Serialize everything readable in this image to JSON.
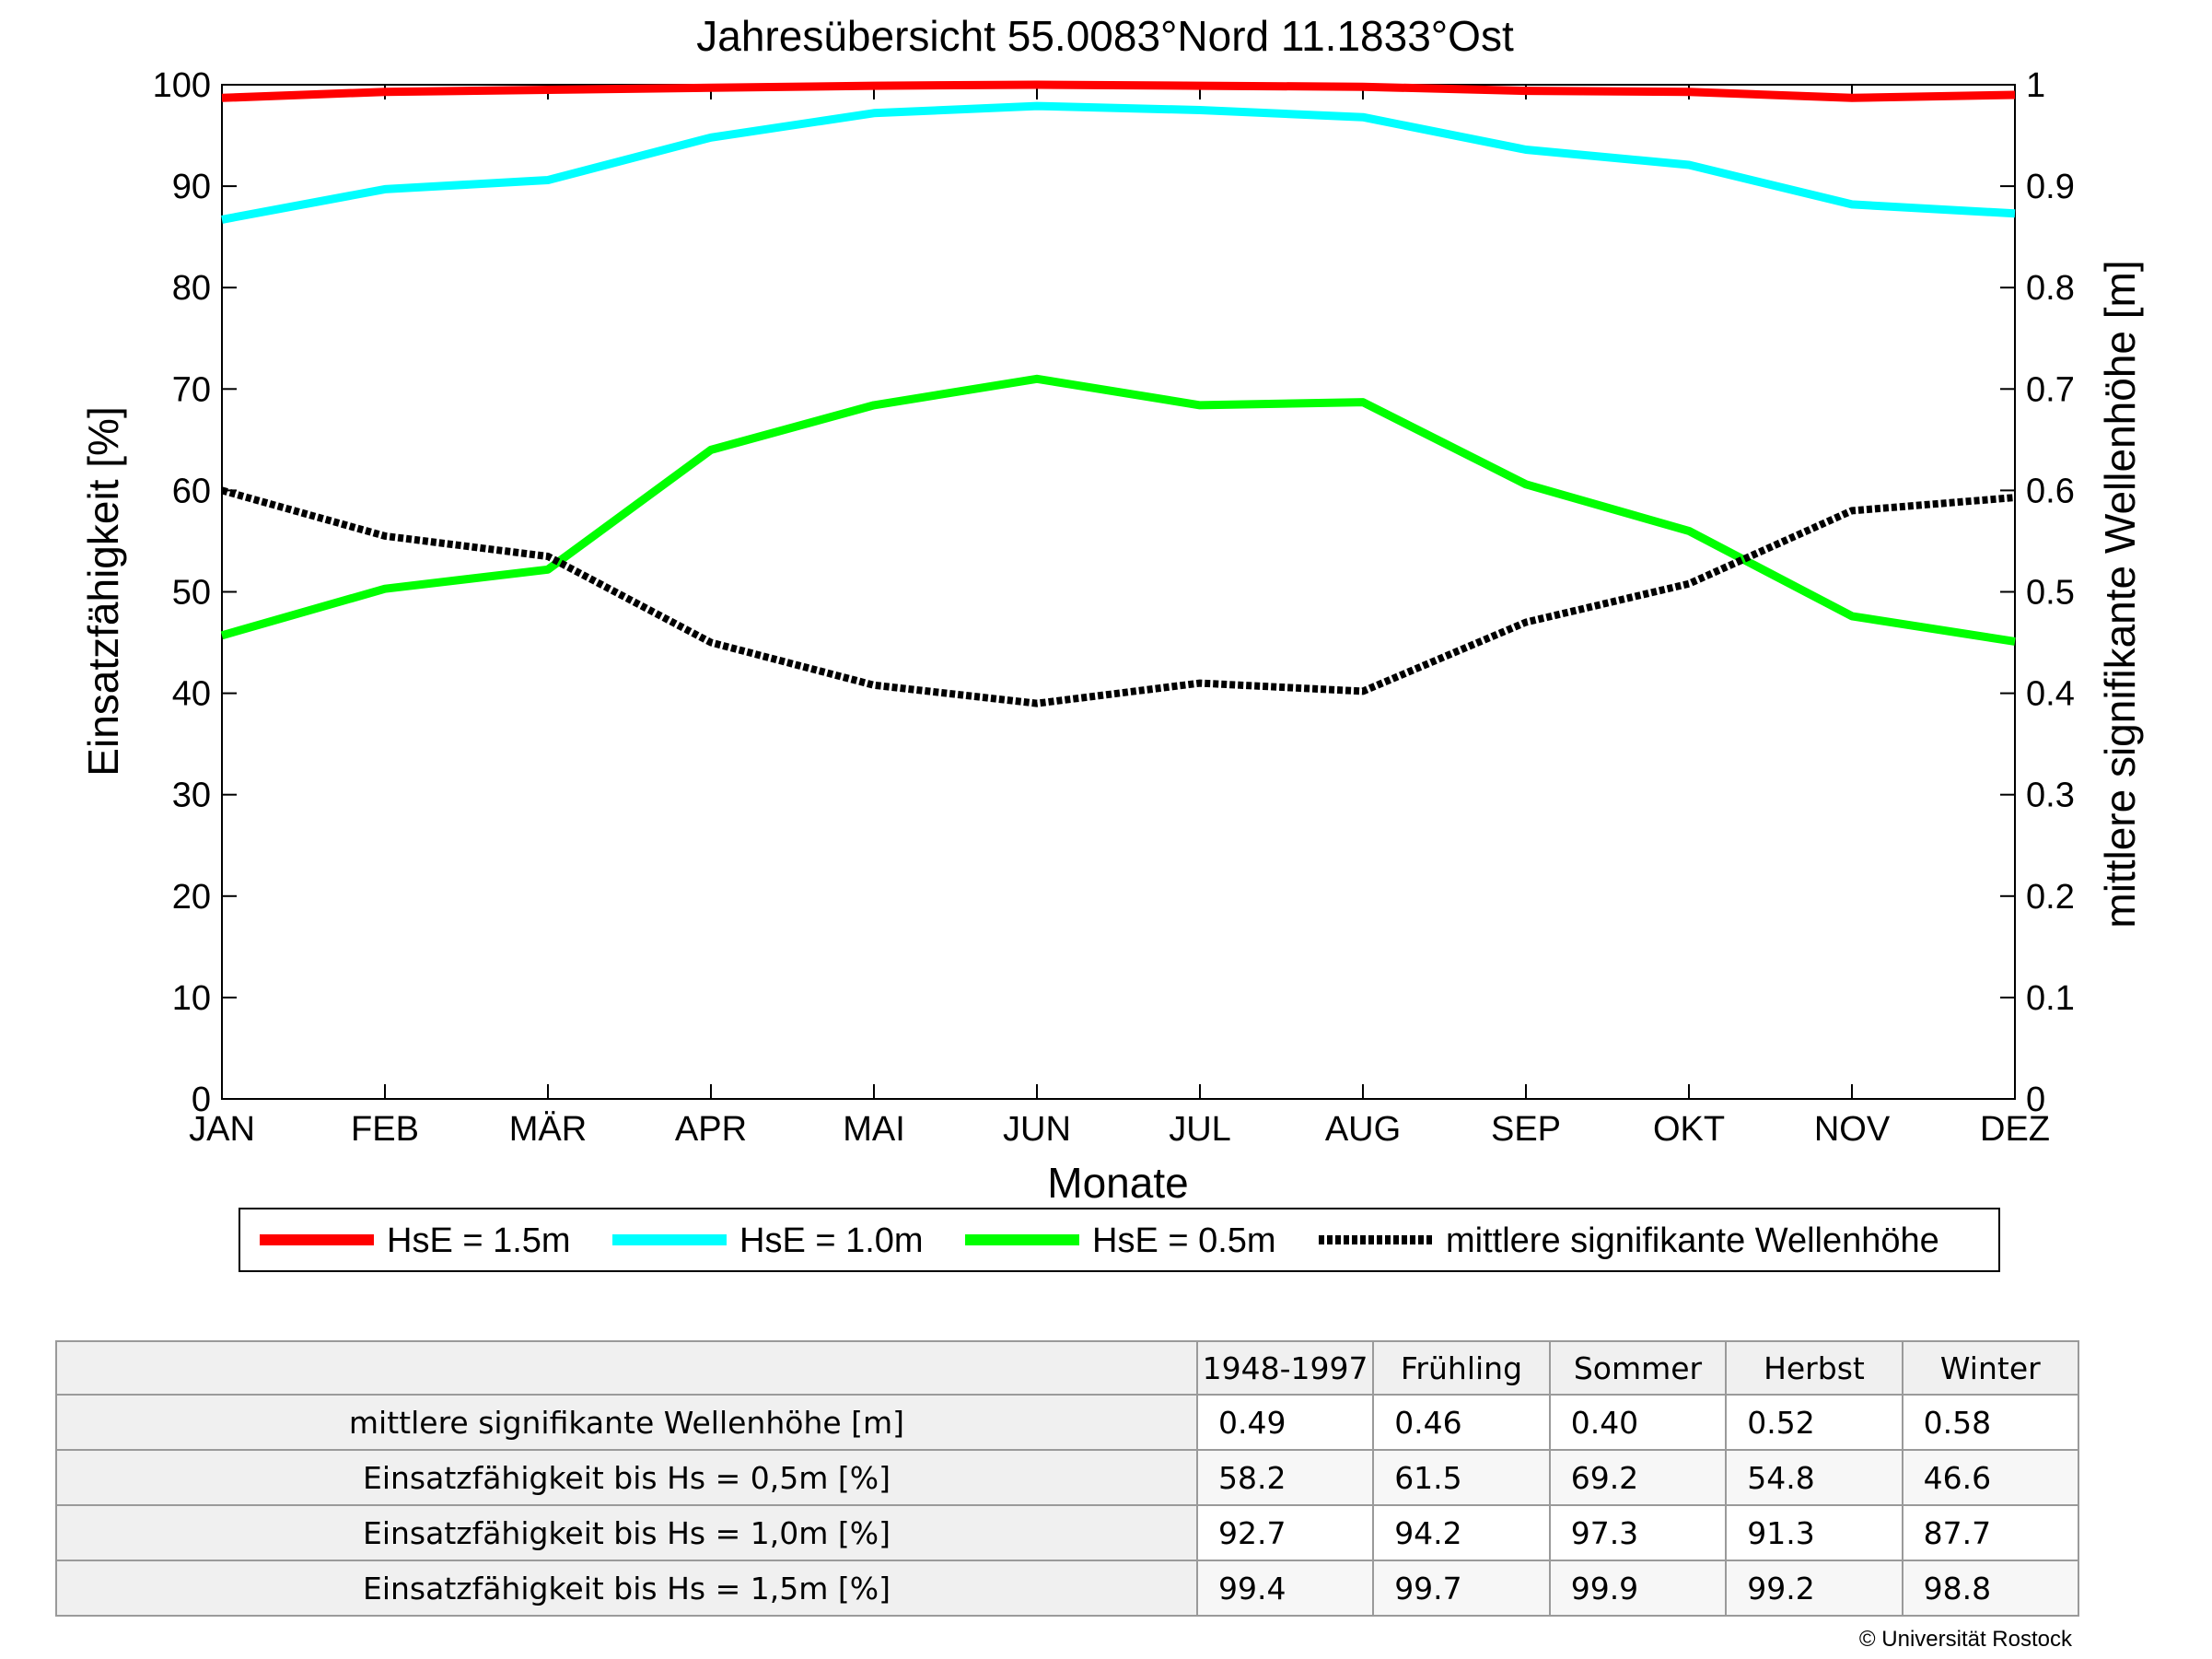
{
  "chart_data": {
    "type": "line",
    "title": "Jahresübersicht  55.0083°Nord  11.1833°Ost",
    "xlabel": "Monate",
    "ylabel": "Einsatzfähigkeit [%]",
    "y2label": "mittlere signifikante Wellenhöhe [m]",
    "categories": [
      "JAN",
      "FEB",
      "MÄR",
      "APR",
      "MAI",
      "JUN",
      "JUL",
      "AUG",
      "SEP",
      "OKT",
      "NOV",
      "DEZ"
    ],
    "ylim": [
      0,
      100
    ],
    "y2lim": [
      0,
      1
    ],
    "yticks": [
      "0",
      "10",
      "20",
      "30",
      "40",
      "50",
      "60",
      "70",
      "80",
      "90",
      "100"
    ],
    "y2ticks": [
      "0",
      "0.1",
      "0.2",
      "0.3",
      "0.4",
      "0.5",
      "0.6",
      "0.7",
      "0.8",
      "0.9",
      "1"
    ],
    "grid": false,
    "legend_position": "bottom",
    "series": [
      {
        "name": "HsE = 1.5m",
        "axis": "left",
        "color": "#ff0000",
        "style": "solid",
        "values": [
          98.7,
          99.3,
          99.5,
          99.7,
          99.9,
          100.0,
          99.9,
          99.8,
          99.4,
          99.3,
          98.7,
          99.0
        ]
      },
      {
        "name": "HsE = 1.0m",
        "axis": "left",
        "color": "#00ffff",
        "style": "solid",
        "values": [
          86.7,
          89.7,
          90.6,
          94.8,
          97.2,
          97.9,
          97.5,
          96.8,
          93.6,
          92.1,
          88.2,
          87.3
        ]
      },
      {
        "name": "HsE = 0.5m",
        "axis": "left",
        "color": "#00ff00",
        "style": "solid",
        "values": [
          45.7,
          50.3,
          52.2,
          64.0,
          68.4,
          71.0,
          68.4,
          68.7,
          60.6,
          56.0,
          47.6,
          45.1
        ]
      },
      {
        "name": "mittlere signifikante Wellenhöhe",
        "axis": "right",
        "color": "#000000",
        "style": "dotted",
        "values": [
          0.6,
          0.555,
          0.535,
          0.45,
          0.408,
          0.39,
          0.41,
          0.402,
          0.47,
          0.508,
          0.58,
          0.593
        ]
      }
    ]
  },
  "table": {
    "headers": [
      "",
      "1948-1997",
      "Frühling",
      "Sommer",
      "Herbst",
      "Winter"
    ],
    "rows": [
      {
        "label": "mittlere signifikante Wellenhöhe [m]",
        "values": [
          "0.49",
          "0.46",
          "0.40",
          "0.52",
          "0.58"
        ]
      },
      {
        "label": "Einsatzfähigkeit bis Hs = 0,5m [%]",
        "values": [
          "58.2",
          "61.5",
          "69.2",
          "54.8",
          "46.6"
        ]
      },
      {
        "label": "Einsatzfähigkeit bis Hs = 1,0m [%]",
        "values": [
          "92.7",
          "94.2",
          "97.3",
          "91.3",
          "87.7"
        ]
      },
      {
        "label": "Einsatzfähigkeit bis Hs = 1,5m [%]",
        "values": [
          "99.4",
          "99.7",
          "99.9",
          "99.2",
          "98.8"
        ]
      }
    ]
  },
  "footer": {
    "copyright": "© Universität Rostock"
  }
}
